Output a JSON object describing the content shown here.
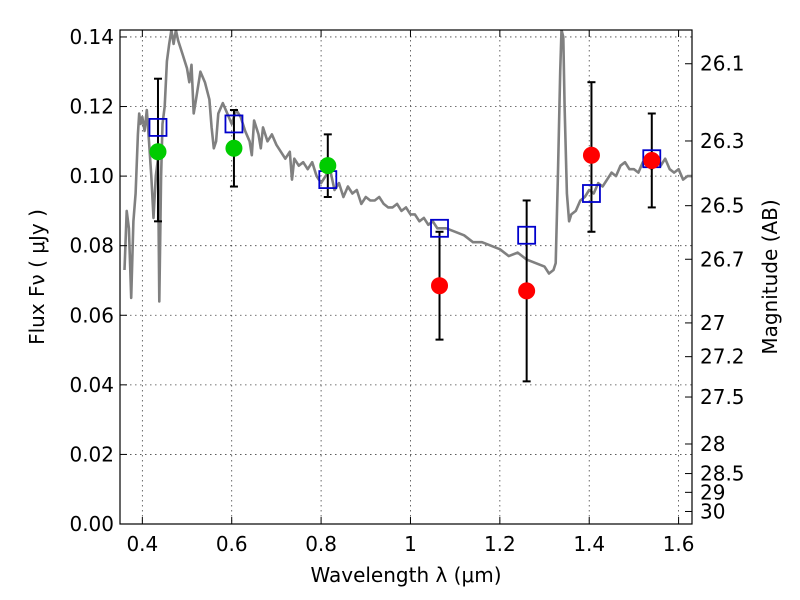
{
  "chart_data": {
    "type": "scatter",
    "xlabel": "Wavelength  λ (μm)",
    "ylabel": "Flux  Fν  ( μJy )",
    "ylabel_right": "Magnitude (AB)",
    "xlim": [
      0.35,
      1.63
    ],
    "ylim": [
      0.0,
      0.142
    ],
    "grid": true,
    "x_ticks": [
      0.4,
      0.6,
      0.8,
      1.0,
      1.2,
      1.4,
      1.6
    ],
    "x_tick_labels": [
      "0.4",
      "0.6",
      "0.8",
      "1",
      "1.2",
      "1.4",
      "1.6"
    ],
    "y_ticks": [
      0.0,
      0.02,
      0.04,
      0.06,
      0.08,
      0.1,
      0.12,
      0.14
    ],
    "y_tick_labels": [
      "0.00",
      "0.02",
      "0.04",
      "0.06",
      "0.08",
      "0.10",
      "0.12",
      "0.14"
    ],
    "right_ticks": [
      {
        "label": "26.1",
        "flux": 0.1323
      },
      {
        "label": "26.3",
        "flux": 0.1101
      },
      {
        "label": "26.5",
        "flux": 0.0915
      },
      {
        "label": "26.7",
        "flux": 0.0761
      },
      {
        "label": "27",
        "flux": 0.0578
      },
      {
        "label": "27.2",
        "flux": 0.0481
      },
      {
        "label": "27.5",
        "flux": 0.0365
      },
      {
        "label": "28",
        "flux": 0.023
      },
      {
        "label": "28.5",
        "flux": 0.0145
      },
      {
        "label": "29",
        "flux": 0.0091
      },
      {
        "label": "30",
        "flux": 0.0036
      }
    ],
    "series": [
      {
        "kind": "line",
        "color": "#808080",
        "points": [
          [
            0.36,
            0.073
          ],
          [
            0.365,
            0.09
          ],
          [
            0.37,
            0.085
          ],
          [
            0.375,
            0.065
          ],
          [
            0.38,
            0.087
          ],
          [
            0.385,
            0.095
          ],
          [
            0.39,
            0.112
          ],
          [
            0.393,
            0.118
          ],
          [
            0.396,
            0.115
          ],
          [
            0.4,
            0.117
          ],
          [
            0.405,
            0.113
          ],
          [
            0.41,
            0.119
          ],
          [
            0.415,
            0.11
          ],
          [
            0.42,
            0.1
          ],
          [
            0.425,
            0.088
          ],
          [
            0.43,
            0.1
          ],
          [
            0.435,
            0.105
          ],
          [
            0.438,
            0.064
          ],
          [
            0.442,
            0.1
          ],
          [
            0.445,
            0.115
          ],
          [
            0.45,
            0.12
          ],
          [
            0.455,
            0.133
          ],
          [
            0.46,
            0.138
          ],
          [
            0.465,
            0.142
          ],
          [
            0.47,
            0.138
          ],
          [
            0.475,
            0.142
          ],
          [
            0.48,
            0.139
          ],
          [
            0.49,
            0.135
          ],
          [
            0.5,
            0.131
          ],
          [
            0.505,
            0.127
          ],
          [
            0.51,
            0.132
          ],
          [
            0.515,
            0.118
          ],
          [
            0.52,
            0.122
          ],
          [
            0.53,
            0.13
          ],
          [
            0.54,
            0.127
          ],
          [
            0.55,
            0.122
          ],
          [
            0.555,
            0.114
          ],
          [
            0.56,
            0.108
          ],
          [
            0.565,
            0.11
          ],
          [
            0.57,
            0.118
          ],
          [
            0.58,
            0.121
          ],
          [
            0.59,
            0.118
          ],
          [
            0.6,
            0.115
          ],
          [
            0.61,
            0.119
          ],
          [
            0.62,
            0.117
          ],
          [
            0.63,
            0.113
          ],
          [
            0.64,
            0.11
          ],
          [
            0.645,
            0.106
          ],
          [
            0.65,
            0.116
          ],
          [
            0.66,
            0.112
          ],
          [
            0.665,
            0.108
          ],
          [
            0.67,
            0.114
          ],
          [
            0.68,
            0.11
          ],
          [
            0.69,
            0.112
          ],
          [
            0.7,
            0.109
          ],
          [
            0.71,
            0.107
          ],
          [
            0.72,
            0.105
          ],
          [
            0.73,
            0.107
          ],
          [
            0.735,
            0.099
          ],
          [
            0.74,
            0.105
          ],
          [
            0.75,
            0.103
          ],
          [
            0.76,
            0.104
          ],
          [
            0.77,
            0.102
          ],
          [
            0.78,
            0.104
          ],
          [
            0.79,
            0.1
          ],
          [
            0.8,
            0.098
          ],
          [
            0.81,
            0.1
          ],
          [
            0.82,
            0.102
          ],
          [
            0.83,
            0.096
          ],
          [
            0.84,
            0.098
          ],
          [
            0.85,
            0.094
          ],
          [
            0.86,
            0.097
          ],
          [
            0.87,
            0.095
          ],
          [
            0.88,
            0.096
          ],
          [
            0.89,
            0.092
          ],
          [
            0.9,
            0.094
          ],
          [
            0.91,
            0.093
          ],
          [
            0.92,
            0.093
          ],
          [
            0.93,
            0.094
          ],
          [
            0.94,
            0.092
          ],
          [
            0.95,
            0.091
          ],
          [
            0.96,
            0.091
          ],
          [
            0.97,
            0.092
          ],
          [
            0.98,
            0.09
          ],
          [
            0.99,
            0.091
          ],
          [
            1.0,
            0.089
          ],
          [
            1.01,
            0.089
          ],
          [
            1.02,
            0.087
          ],
          [
            1.03,
            0.088
          ],
          [
            1.04,
            0.086
          ],
          [
            1.05,
            0.087
          ],
          [
            1.06,
            0.085
          ],
          [
            1.07,
            0.085
          ],
          [
            1.08,
            0.085
          ],
          [
            1.1,
            0.084
          ],
          [
            1.12,
            0.083
          ],
          [
            1.14,
            0.081
          ],
          [
            1.16,
            0.081
          ],
          [
            1.18,
            0.08
          ],
          [
            1.2,
            0.079
          ],
          [
            1.22,
            0.077
          ],
          [
            1.24,
            0.078
          ],
          [
            1.26,
            0.076
          ],
          [
            1.28,
            0.075
          ],
          [
            1.3,
            0.074
          ],
          [
            1.31,
            0.072
          ],
          [
            1.32,
            0.073
          ],
          [
            1.325,
            0.075
          ],
          [
            1.33,
            0.1
          ],
          [
            1.335,
            0.13
          ],
          [
            1.338,
            0.142
          ],
          [
            1.342,
            0.14
          ],
          [
            1.345,
            0.12
          ],
          [
            1.35,
            0.095
          ],
          [
            1.355,
            0.087
          ],
          [
            1.36,
            0.089
          ],
          [
            1.37,
            0.09
          ],
          [
            1.38,
            0.093
          ],
          [
            1.39,
            0.094
          ],
          [
            1.4,
            0.096
          ],
          [
            1.41,
            0.095
          ],
          [
            1.42,
            0.098
          ],
          [
            1.43,
            0.097
          ],
          [
            1.44,
            0.099
          ],
          [
            1.45,
            0.101
          ],
          [
            1.46,
            0.1
          ],
          [
            1.47,
            0.103
          ],
          [
            1.48,
            0.104
          ],
          [
            1.49,
            0.102
          ],
          [
            1.5,
            0.102
          ],
          [
            1.51,
            0.101
          ],
          [
            1.52,
            0.104
          ],
          [
            1.53,
            0.103
          ],
          [
            1.54,
            0.102
          ],
          [
            1.55,
            0.104
          ],
          [
            1.56,
            0.103
          ],
          [
            1.57,
            0.105
          ],
          [
            1.58,
            0.102
          ],
          [
            1.59,
            0.101
          ],
          [
            1.6,
            0.102
          ],
          [
            1.61,
            0.099
          ],
          [
            1.62,
            0.1
          ],
          [
            1.63,
            0.1
          ]
        ]
      },
      {
        "kind": "open-square",
        "color": "#0000cc",
        "points": [
          {
            "x": 0.435,
            "y": 0.114
          },
          {
            "x": 0.605,
            "y": 0.115
          },
          {
            "x": 0.815,
            "y": 0.099
          },
          {
            "x": 1.065,
            "y": 0.085
          },
          {
            "x": 1.26,
            "y": 0.083
          },
          {
            "x": 1.405,
            "y": 0.095
          },
          {
            "x": 1.54,
            "y": 0.105
          }
        ]
      },
      {
        "kind": "filled-circle",
        "color": "#00cc00",
        "points": [
          {
            "x": 0.435,
            "y": 0.107,
            "err_low": 0.087,
            "err_high": 0.128
          },
          {
            "x": 0.605,
            "y": 0.108,
            "err_low": 0.097,
            "err_high": 0.119
          },
          {
            "x": 0.815,
            "y": 0.103,
            "err_low": 0.094,
            "err_high": 0.112
          }
        ]
      },
      {
        "kind": "filled-circle",
        "color": "#ff0000",
        "points": [
          {
            "x": 1.065,
            "y": 0.0685,
            "err_low": 0.053,
            "err_high": 0.084
          },
          {
            "x": 1.26,
            "y": 0.067,
            "err_low": 0.041,
            "err_high": 0.093
          },
          {
            "x": 1.405,
            "y": 0.106,
            "err_low": 0.084,
            "err_high": 0.127
          },
          {
            "x": 1.54,
            "y": 0.1045,
            "err_low": 0.091,
            "err_high": 0.118
          }
        ]
      }
    ]
  }
}
